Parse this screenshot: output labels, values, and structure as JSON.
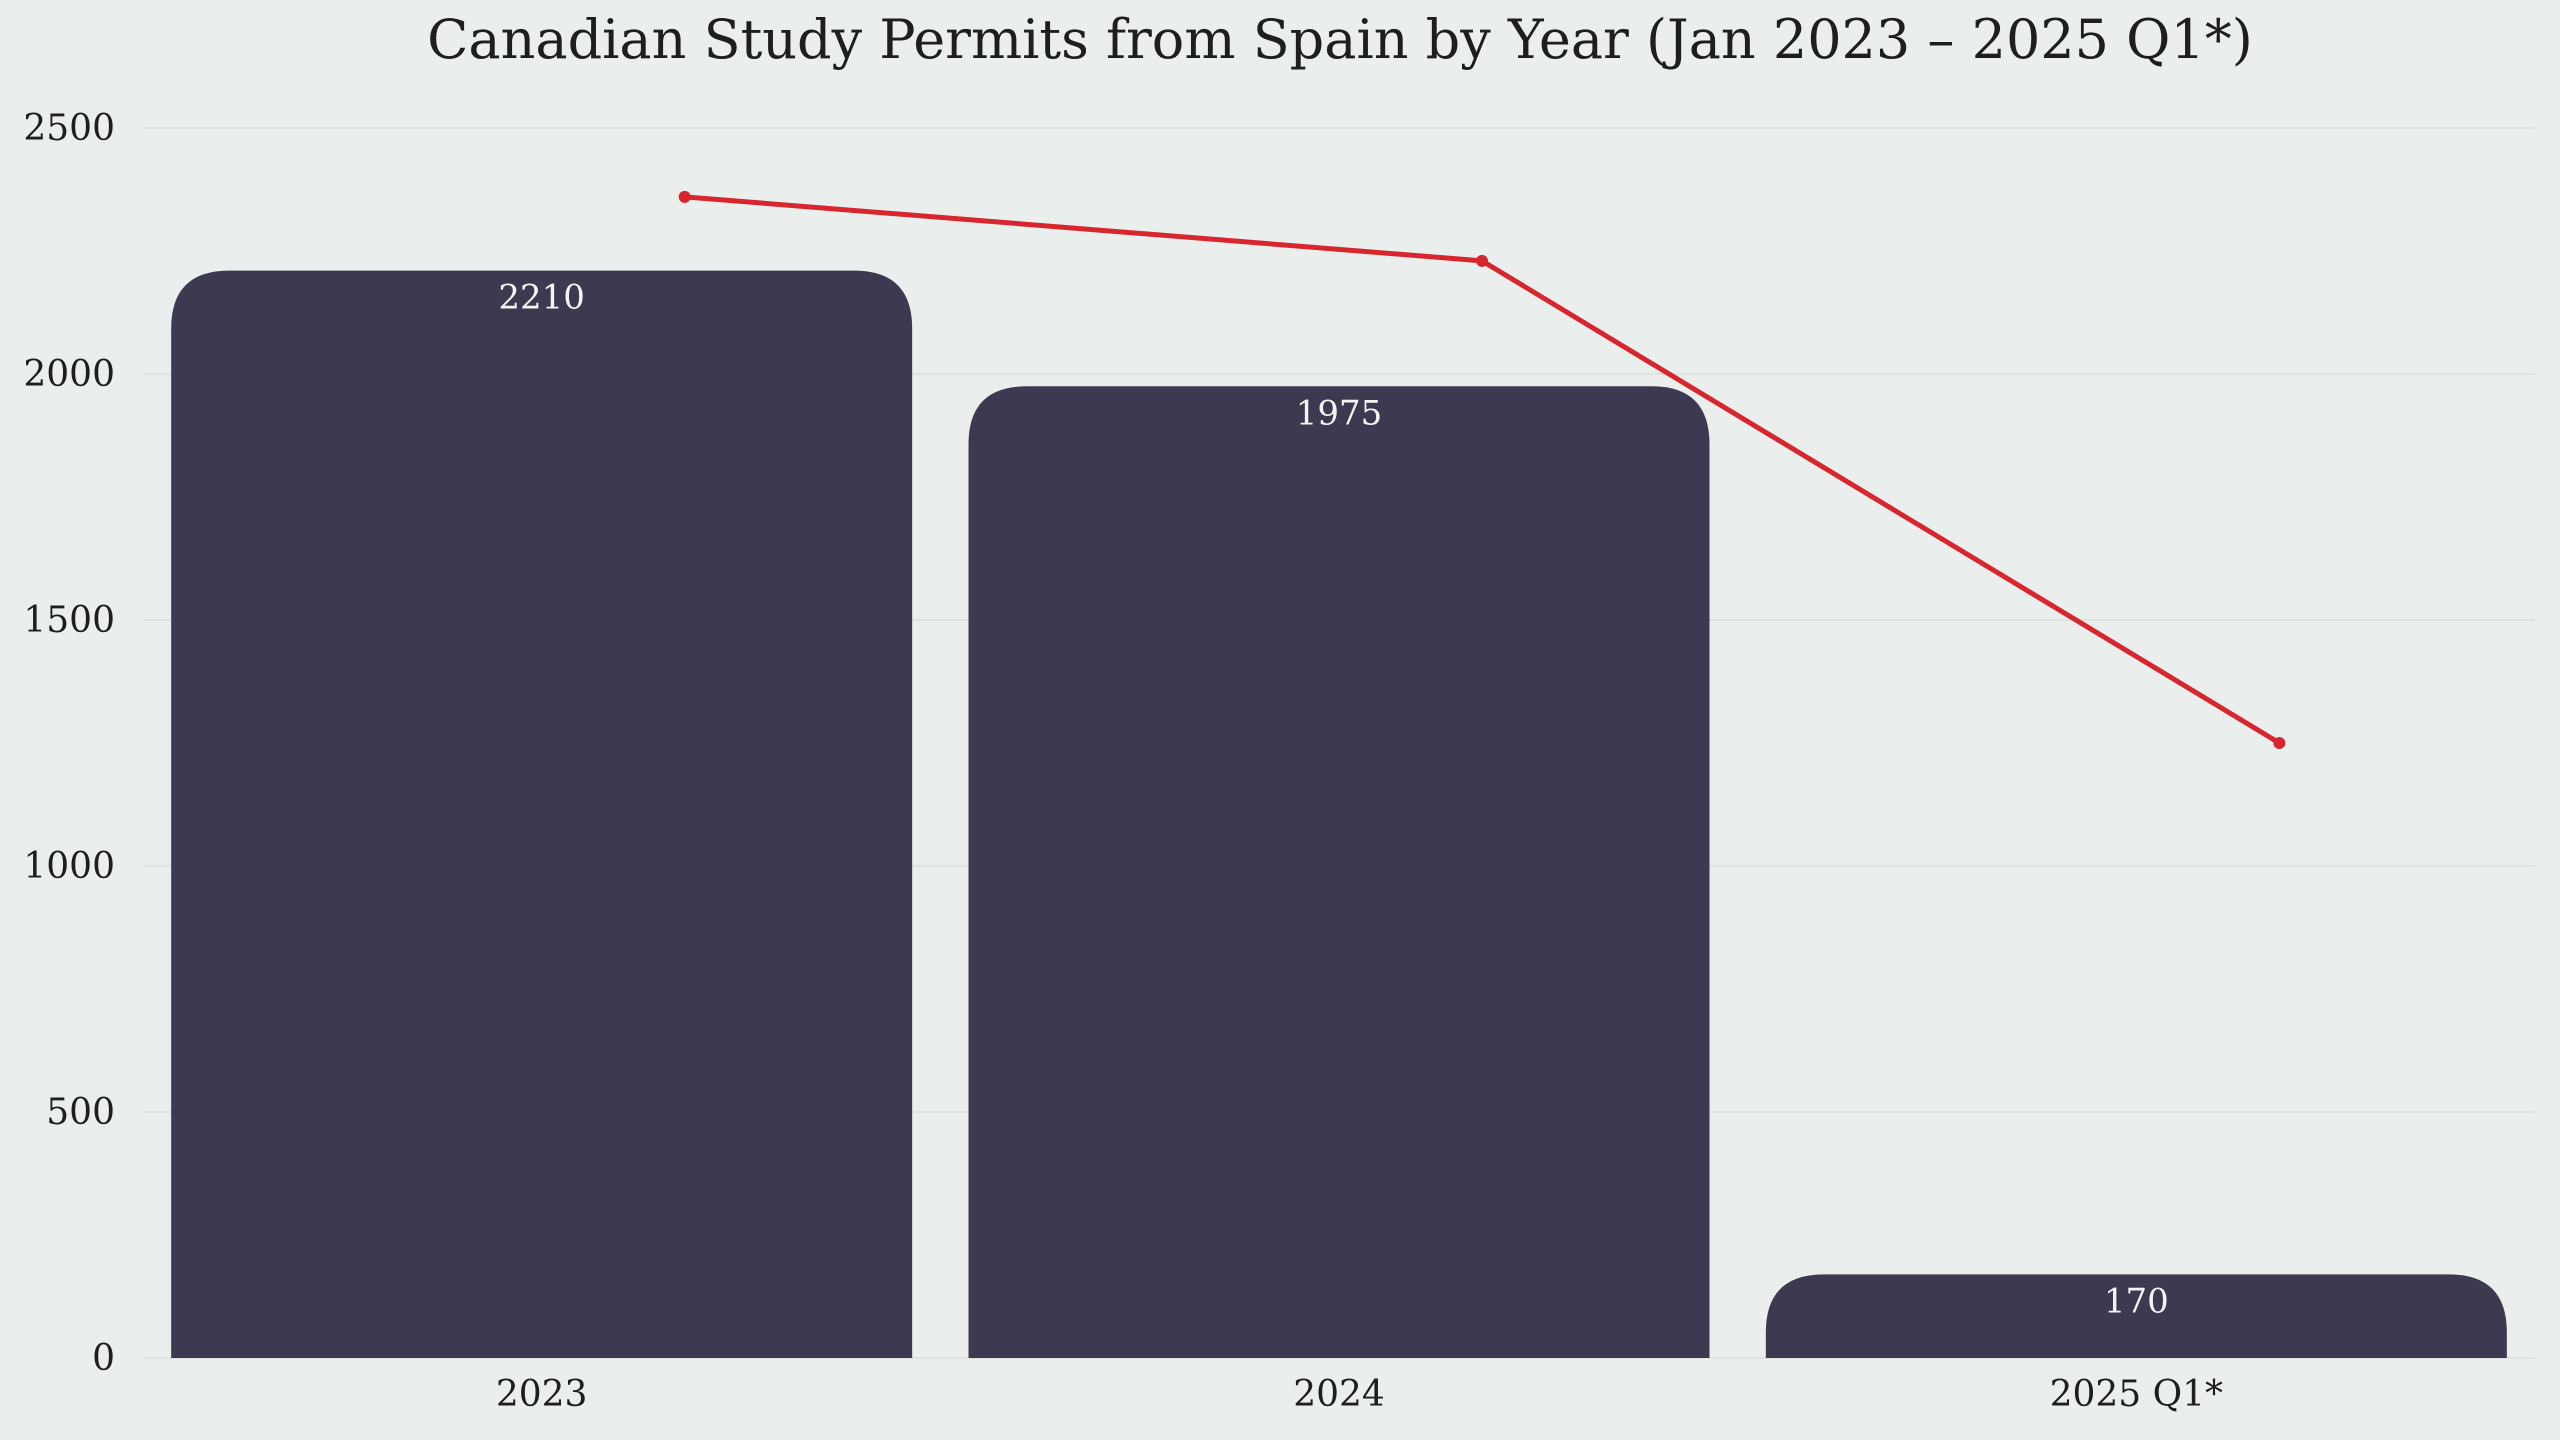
{
  "chart_data": {
    "type": "bar",
    "title": "Canadian Study Permits from Spain by Year (Jan 2023 – 2025 Q1*)",
    "xlabel": "",
    "ylabel": "",
    "categories": [
      "2023",
      "2024",
      "2025 Q1*"
    ],
    "values": [
      2210,
      1975,
      170
    ],
    "data_labels": [
      "2210",
      "1975",
      "170"
    ],
    "ylim": [
      0,
      2500
    ],
    "yticks": [
      0,
      500,
      1000,
      1500,
      2000,
      2500
    ],
    "ytick_labels": [
      "0",
      "500",
      "1000",
      "1500",
      "2000",
      "2500"
    ],
    "grid": true,
    "legend": false,
    "overlay_line": {
      "type": "line",
      "x_positions": [
        0.5,
        1.5,
        2.5
      ],
      "values": [
        2360,
        2230,
        1250
      ]
    },
    "colors": {
      "background": "#eaeeed",
      "bar": "#3d3950",
      "line": "#d7262e",
      "bar_label": "#f4f4f4",
      "text": "#1e1e1e",
      "grid": "#d9dddc"
    }
  }
}
